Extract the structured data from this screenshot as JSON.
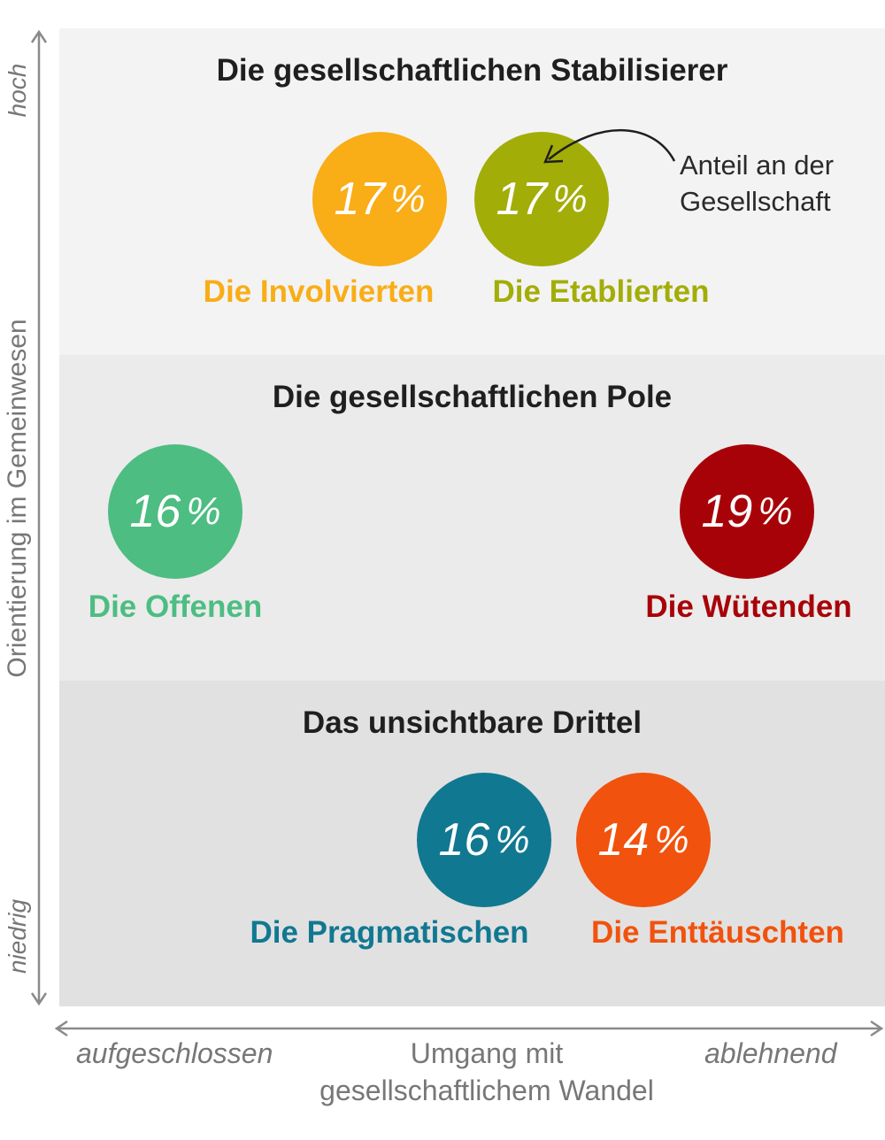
{
  "groups": {
    "top": {
      "title": "Die gesellschaftlichen Stabilisierer"
    },
    "middle": {
      "title": "Die gesellschaftlichen Pole"
    },
    "bottom": {
      "title": "Das unsichtbare Drittel"
    }
  },
  "segments": [
    {
      "name": "Die Involvierten",
      "value": "17",
      "color": "#f9ad16"
    },
    {
      "name": "Die Etablierten",
      "value": "17",
      "color": "#a3ad08"
    },
    {
      "name": "Die Offenen",
      "value": "16",
      "color": "#4dbd82"
    },
    {
      "name": "Die Wütenden",
      "value": "19",
      "color": "#a80209"
    },
    {
      "name": "Die Pragmatischen",
      "value": "16",
      "color": "#117891"
    },
    {
      "name": "Die Enttäuschten",
      "value": "14",
      "color": "#f1520d"
    }
  ],
  "percent_sign": "%",
  "annotation": {
    "line1": "Anteil an der",
    "line2": "Gesellschaft"
  },
  "y_axis": {
    "label": "Orientierung im Gemeinwesen",
    "high": "hoch",
    "low": "niedrig"
  },
  "x_axis": {
    "label_line1": "Umgang mit",
    "label_line2": "gesellschaftlichem Wandel",
    "left": "aufgeschlossen",
    "right": "ablehnend"
  }
}
